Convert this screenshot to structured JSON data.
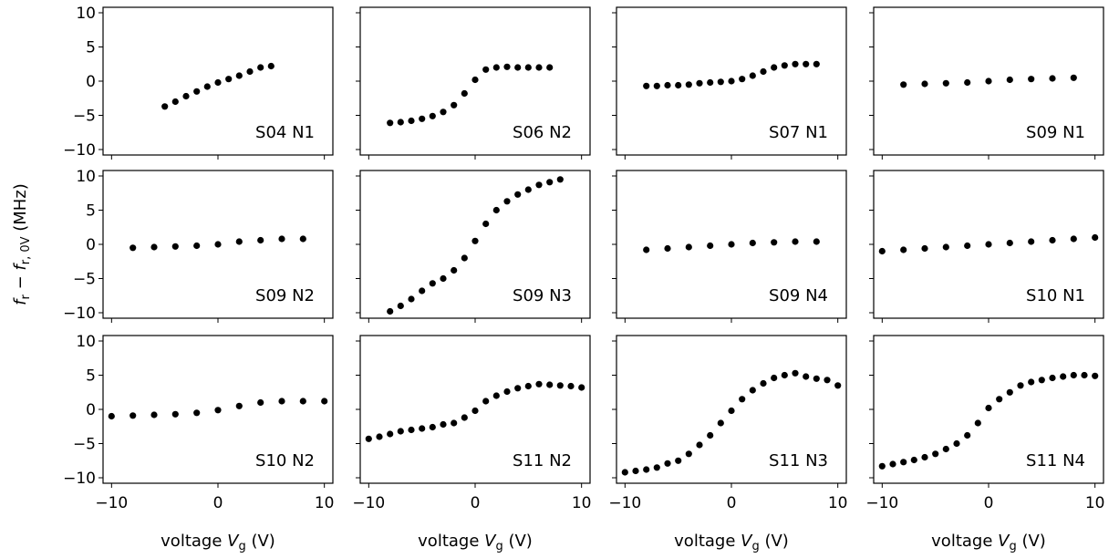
{
  "figure": {
    "ylabel_parts": [
      "f",
      "r",
      " − ",
      "f",
      "r, 0V",
      " (MHz)"
    ],
    "xlabel_parts": [
      "voltage ",
      "V",
      "g",
      " (V)"
    ],
    "xticks": [
      -10,
      0,
      10
    ],
    "yticks": [
      -10,
      -5,
      0,
      5,
      10
    ],
    "xlim": [
      -10.8,
      10.8
    ],
    "ylim": [
      -10.8,
      10.8
    ],
    "grid": false,
    "marker_color": "#000000"
  },
  "chart_data": [
    {
      "type": "scatter",
      "label": "S04 N1",
      "x": [
        -5,
        -4,
        -3,
        -2,
        -1,
        0,
        1,
        2,
        3,
        4,
        5
      ],
      "y": [
        -3.7,
        -3.0,
        -2.2,
        -1.5,
        -0.8,
        -0.2,
        0.3,
        0.8,
        1.4,
        2.0,
        2.2
      ]
    },
    {
      "type": "scatter",
      "label": "S06 N2",
      "x": [
        -8,
        -7,
        -6,
        -5,
        -4,
        -3,
        -2,
        -1,
        0,
        1,
        2,
        3,
        4,
        5,
        6,
        7
      ],
      "y": [
        -6.1,
        -6.0,
        -5.8,
        -5.5,
        -5.1,
        -4.5,
        -3.5,
        -1.8,
        0.2,
        1.7,
        2.0,
        2.1,
        2.0,
        2.0,
        2.0,
        2.0
      ]
    },
    {
      "type": "scatter",
      "label": "S07 N1",
      "x": [
        -8,
        -7,
        -6,
        -5,
        -4,
        -3,
        -2,
        -1,
        0,
        1,
        2,
        3,
        4,
        5,
        6,
        7,
        8
      ],
      "y": [
        -0.7,
        -0.7,
        -0.6,
        -0.6,
        -0.5,
        -0.3,
        -0.2,
        -0.1,
        0.0,
        0.3,
        0.8,
        1.4,
        2.0,
        2.3,
        2.5,
        2.5,
        2.5
      ]
    },
    {
      "type": "scatter",
      "label": "S09 N1",
      "x": [
        -8,
        -6,
        -4,
        -2,
        0,
        2,
        4,
        6,
        8
      ],
      "y": [
        -0.5,
        -0.4,
        -0.3,
        -0.2,
        0.0,
        0.2,
        0.3,
        0.4,
        0.5
      ]
    },
    {
      "type": "scatter",
      "label": "S09 N2",
      "x": [
        -8,
        -6,
        -4,
        -2,
        0,
        2,
        4,
        6,
        8
      ],
      "y": [
        -0.5,
        -0.4,
        -0.3,
        -0.2,
        0.0,
        0.4,
        0.6,
        0.8,
        0.8
      ]
    },
    {
      "type": "scatter",
      "label": "S09 N3",
      "x": [
        -8,
        -7,
        -6,
        -5,
        -4,
        -3,
        -2,
        -1,
        0,
        1,
        2,
        3,
        4,
        5,
        6,
        7,
        8
      ],
      "y": [
        -9.8,
        -9.0,
        -8.0,
        -6.8,
        -5.7,
        -5.0,
        -3.8,
        -2.0,
        0.5,
        3.0,
        5.0,
        6.3,
        7.3,
        8.0,
        8.7,
        9.1,
        9.5
      ]
    },
    {
      "type": "scatter",
      "label": "S09 N4",
      "x": [
        -8,
        -6,
        -4,
        -2,
        0,
        2,
        4,
        6,
        8
      ],
      "y": [
        -0.8,
        -0.6,
        -0.4,
        -0.2,
        0.0,
        0.2,
        0.3,
        0.4,
        0.4
      ]
    },
    {
      "type": "scatter",
      "label": "S10 N1",
      "x": [
        -10,
        -8,
        -6,
        -4,
        -2,
        0,
        2,
        4,
        6,
        8,
        10
      ],
      "y": [
        -1.0,
        -0.8,
        -0.6,
        -0.4,
        -0.2,
        0.0,
        0.2,
        0.4,
        0.6,
        0.8,
        1.0
      ]
    },
    {
      "type": "scatter",
      "label": "S10 N2",
      "x": [
        -10,
        -8,
        -6,
        -4,
        -2,
        0,
        2,
        4,
        6,
        8,
        10
      ],
      "y": [
        -1.0,
        -0.9,
        -0.8,
        -0.7,
        -0.5,
        -0.1,
        0.5,
        1.0,
        1.2,
        1.2,
        1.2
      ]
    },
    {
      "type": "scatter",
      "label": "S11 N2",
      "x": [
        -10,
        -9,
        -8,
        -7,
        -6,
        -5,
        -4,
        -3,
        -2,
        -1,
        0,
        1,
        2,
        3,
        4,
        5,
        6,
        7,
        8,
        9,
        10
      ],
      "y": [
        -4.3,
        -4.0,
        -3.6,
        -3.2,
        -3.0,
        -2.8,
        -2.6,
        -2.2,
        -2.0,
        -1.2,
        -0.2,
        1.2,
        2.0,
        2.6,
        3.1,
        3.4,
        3.7,
        3.6,
        3.5,
        3.4,
        3.2
      ]
    },
    {
      "type": "scatter",
      "label": "S11 N3",
      "x": [
        -10,
        -9,
        -8,
        -7,
        -6,
        -5,
        -4,
        -3,
        -2,
        -1,
        0,
        1,
        2,
        3,
        4,
        5,
        6,
        7,
        8,
        9,
        10
      ],
      "y": [
        -9.2,
        -9.0,
        -8.8,
        -8.5,
        -7.9,
        -7.5,
        -6.5,
        -5.2,
        -3.8,
        -2.0,
        -0.2,
        1.5,
        2.8,
        3.8,
        4.6,
        5.0,
        5.3,
        4.8,
        4.5,
        4.3,
        3.5
      ]
    },
    {
      "type": "scatter",
      "label": "S11 N4",
      "x": [
        -10,
        -9,
        -8,
        -7,
        -6,
        -5,
        -4,
        -3,
        -2,
        -1,
        0,
        1,
        2,
        3,
        4,
        5,
        6,
        7,
        8,
        9,
        10
      ],
      "y": [
        -8.3,
        -8.0,
        -7.7,
        -7.4,
        -7.0,
        -6.5,
        -5.8,
        -5.0,
        -3.8,
        -2.0,
        0.2,
        1.5,
        2.5,
        3.5,
        4.0,
        4.3,
        4.6,
        4.8,
        5.0,
        5.0,
        4.9
      ]
    }
  ]
}
